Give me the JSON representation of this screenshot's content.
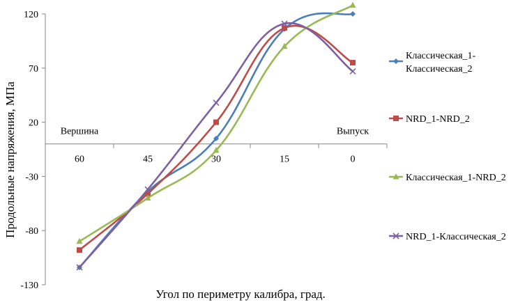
{
  "chart_data": {
    "type": "line",
    "title": "",
    "xlabel": "Угол по периметру калибра, град.",
    "ylabel": "Продольные напряжения, МПа",
    "x": [
      60,
      45,
      30,
      15,
      0
    ],
    "x_tick_labels": [
      "60",
      "45",
      "30",
      "15",
      "0"
    ],
    "xlim": [
      67.5,
      -7.5
    ],
    "ylim": [
      -130,
      120
    ],
    "y_ticks": [
      -130,
      -80,
      -30,
      20,
      70,
      120
    ],
    "y_tick_labels": [
      "-130",
      "-80",
      "-30",
      "20",
      "70",
      "120"
    ],
    "x_axis_crosses_y_at": 0,
    "grid": false,
    "legend_position": "right",
    "annotations": [
      {
        "text": "Вершина",
        "x": 60
      },
      {
        "text": "Выпуск",
        "x": 0
      }
    ],
    "series": [
      {
        "name": "Классическая_1-Классическая_2",
        "legend_lines": [
          "Классическая_1-",
          "Классическая_2"
        ],
        "color": "#4A7EBB",
        "marker": "diamond",
        "values": [
          -114,
          -44,
          5,
          106,
          120
        ]
      },
      {
        "name": "NRD_1-NRD_2",
        "legend_lines": [
          "NRD_1-NRD_2"
        ],
        "color": "#BE4B48",
        "marker": "square",
        "values": [
          -98,
          -46,
          20,
          107,
          75
        ]
      },
      {
        "name": "Классическая_1-NRD_2",
        "legend_lines": [
          "Классическая_1-NRD_2"
        ],
        "color": "#98B954",
        "marker": "triangle",
        "values": [
          -90,
          -50,
          -6,
          90,
          128
        ]
      },
      {
        "name": "NRD_1-Классическая_2",
        "legend_lines": [
          "NRD_1-Классическая_2"
        ],
        "color": "#7D60A0",
        "marker": "x",
        "values": [
          -114,
          -42,
          38,
          111,
          67
        ]
      }
    ]
  }
}
